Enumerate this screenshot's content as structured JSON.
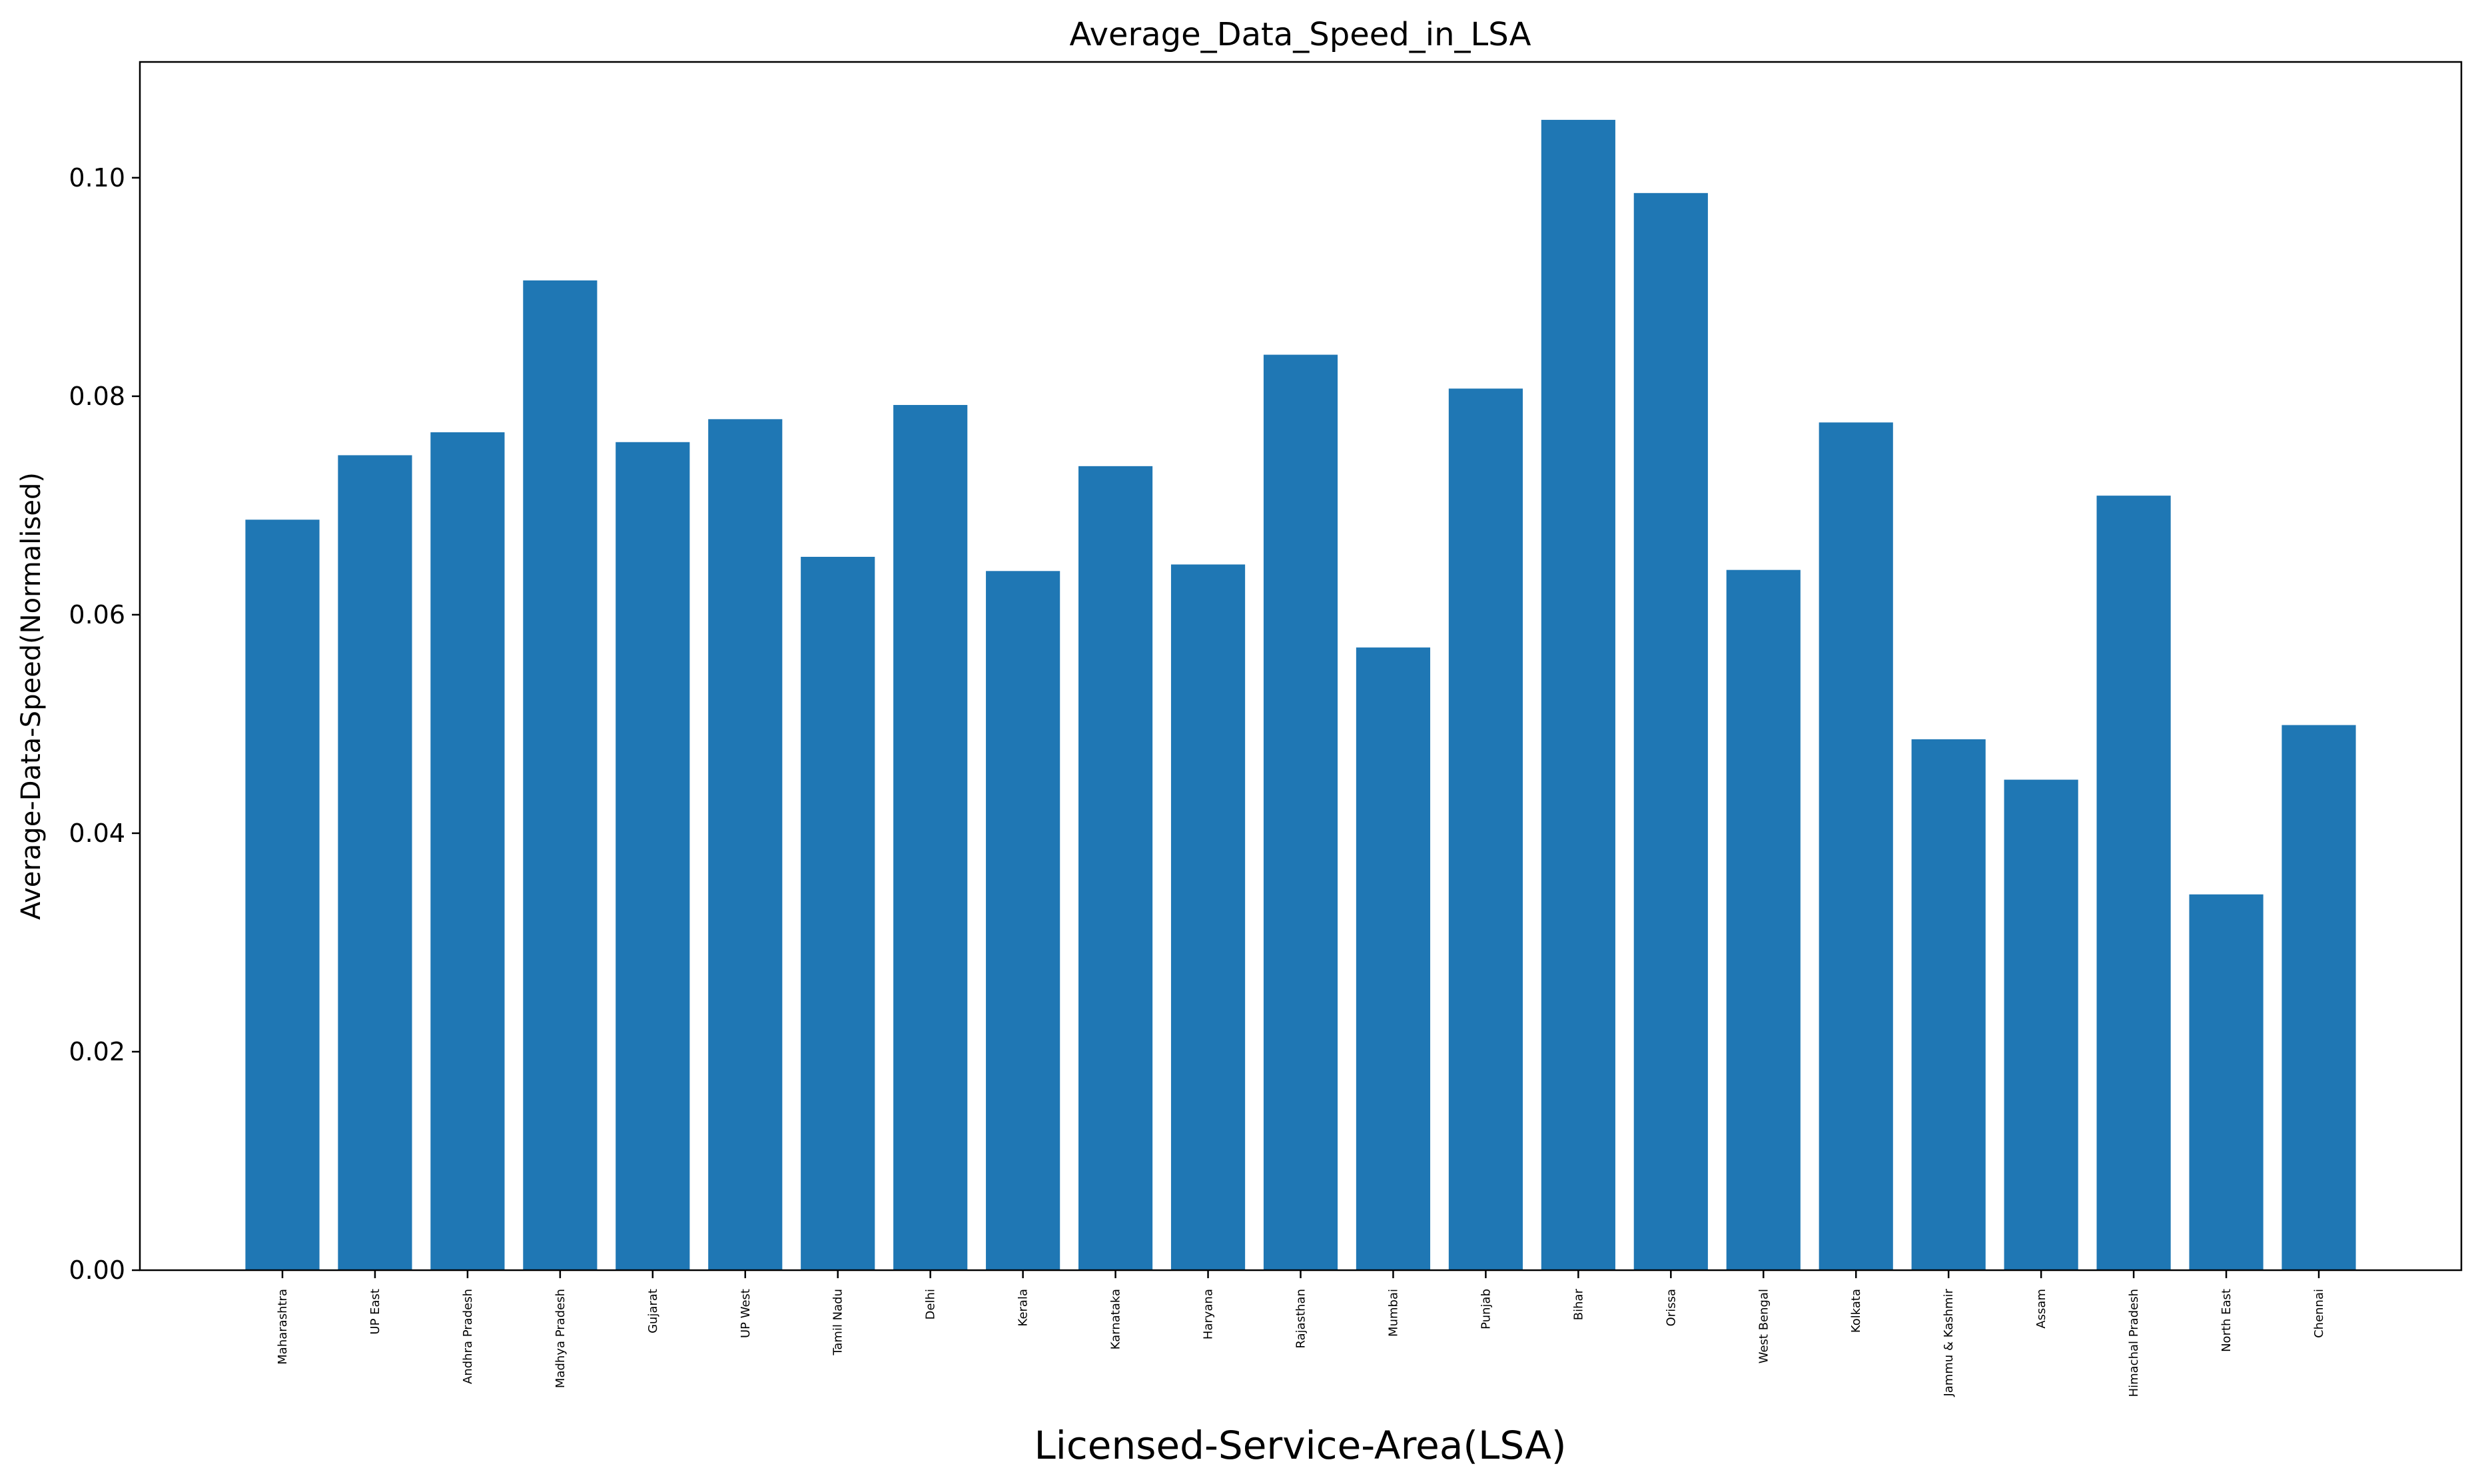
{
  "chart_data": {
    "type": "bar",
    "title": "Average_Data_Speed_in_LSA",
    "xlabel": "Licensed-Service-Area(LSA)",
    "ylabel": "Average-Data-Speed(Normalised)",
    "categories": [
      "Maharashtra",
      "UP East",
      "Andhra Pradesh",
      "Madhya Pradesh",
      "Gujarat",
      "UP West",
      "Tamil Nadu",
      "Delhi",
      "Kerala",
      "Karnataka",
      "Haryana",
      "Rajasthan",
      "Mumbai",
      "Punjab",
      "Bihar",
      "Orissa",
      "West Bengal",
      "Kolkata",
      "Jammu & Kashmir",
      "Assam",
      "Himachal Pradesh",
      "North East",
      "Chennai"
    ],
    "values": [
      0.0687,
      0.0746,
      0.0767,
      0.0906,
      0.0758,
      0.0779,
      0.0653,
      0.0792,
      0.064,
      0.0736,
      0.0646,
      0.0838,
      0.057,
      0.0807,
      0.1053,
      0.0986,
      0.0641,
      0.0776,
      0.0486,
      0.0449,
      0.0709,
      0.0344,
      0.0499
    ],
    "yticks": [
      "0.00",
      "0.02",
      "0.04",
      "0.06",
      "0.08",
      "0.10"
    ],
    "ytick_values": [
      0,
      0.02,
      0.04,
      0.06,
      0.08,
      0.1
    ],
    "ylim": [
      0,
      0.1106
    ],
    "grid": false,
    "bar_color": "#1f77b4"
  }
}
